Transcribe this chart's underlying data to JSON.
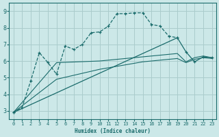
{
  "xlabel": "Humidex (Indice chaleur)",
  "bg_color": "#cce8e8",
  "grid_color": "#aacccc",
  "line_color": "#1a6b6b",
  "xlim": [
    -0.5,
    23.5
  ],
  "ylim": [
    2.5,
    9.5
  ],
  "yticks": [
    3,
    4,
    5,
    6,
    7,
    8,
    9
  ],
  "xticks": [
    0,
    1,
    2,
    3,
    4,
    5,
    6,
    7,
    8,
    9,
    10,
    11,
    12,
    13,
    14,
    15,
    16,
    17,
    18,
    19,
    20,
    21,
    22,
    23
  ],
  "lines": [
    {
      "x": [
        0,
        1,
        2,
        3,
        4,
        5,
        6,
        7,
        8,
        9,
        10,
        11,
        12,
        13,
        14,
        15,
        16,
        17,
        18,
        19
      ],
      "y": [
        2.9,
        3.2,
        4.8,
        6.5,
        5.9,
        5.2,
        6.9,
        6.7,
        7.0,
        7.7,
        7.75,
        8.1,
        8.85,
        8.85,
        8.9,
        8.9,
        8.2,
        8.1,
        7.5,
        7.4
      ],
      "marker": "+",
      "linestyle": "--",
      "lw": 0.9
    },
    {
      "x": [
        0,
        19,
        20,
        21,
        22,
        23
      ],
      "y": [
        2.9,
        7.4,
        6.55,
        5.95,
        6.25,
        6.2
      ],
      "marker": "+",
      "linestyle": "-",
      "lw": 0.9
    },
    {
      "x": [
        0,
        5,
        10,
        15,
        19,
        20,
        21,
        22,
        23
      ],
      "y": [
        2.9,
        5.9,
        6.0,
        6.25,
        6.45,
        5.95,
        6.2,
        6.3,
        6.2
      ],
      "marker": null,
      "linestyle": "-",
      "lw": 0.8
    },
    {
      "x": [
        0,
        5,
        10,
        15,
        19,
        20,
        21,
        22,
        23
      ],
      "y": [
        2.9,
        4.9,
        5.5,
        5.95,
        6.15,
        5.9,
        6.1,
        6.2,
        6.15
      ],
      "marker": null,
      "linestyle": "-",
      "lw": 0.8
    }
  ]
}
